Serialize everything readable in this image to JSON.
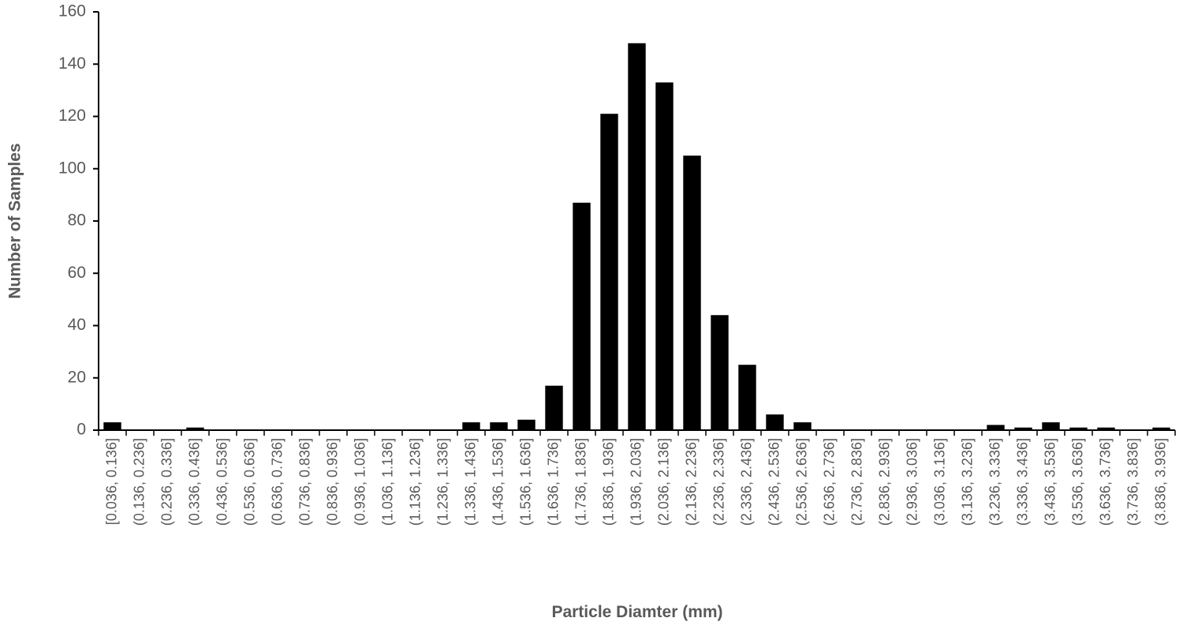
{
  "chart_data": {
    "type": "bar",
    "x_label": "Particle Diamter (mm)",
    "y_label": "Number of Samples",
    "categories": [
      "[0.036, 0.136]",
      "(0.136, 0.236]",
      "(0.236, 0.336]",
      "(0.336, 0.436]",
      "(0.436, 0.536]",
      "(0.536, 0.636]",
      "(0.636, 0.736]",
      "(0.736, 0.836]",
      "(0.836, 0.936]",
      "(0.936, 1.036]",
      "(1.036, 1.136]",
      "(1.136, 1.236]",
      "(1.236, 1.336]",
      "(1.336, 1.436]",
      "(1.436, 1.536]",
      "(1.536, 1.636]",
      "(1.636, 1.736]",
      "(1.736, 1.836]",
      "(1.836, 1.936]",
      "(1.936, 2.036]",
      "(2.036, 2.136]",
      "(2.136, 2.236]",
      "(2.236, 2.336]",
      "(2.336, 2.436]",
      "(2.436, 2.536]",
      "(2.536, 2.636]",
      "(2.636, 2.736]",
      "(2.736, 2.836]",
      "(2.836, 2.936]",
      "(2.936, 3.036]",
      "(3.036, 3.136]",
      "(3.136, 3.236]",
      "(3.236, 3.336]",
      "(3.336, 3.436]",
      "(3.436, 3.536]",
      "(3.536, 3.636]",
      "(3.636, 3.736]",
      "(3.736, 3.836]",
      "(3.836, 3.936]"
    ],
    "values": [
      3,
      0,
      0,
      1,
      0,
      0,
      0,
      0,
      0,
      0,
      0,
      0,
      0,
      3,
      3,
      4,
      17,
      87,
      121,
      148,
      133,
      105,
      44,
      25,
      6,
      3,
      0,
      0,
      0,
      0,
      0,
      0,
      2,
      1,
      3,
      1,
      1,
      0,
      1
    ],
    "color": "#000000",
    "ylim": [
      0,
      160
    ],
    "yticks": [
      0,
      20,
      40,
      60,
      80,
      100,
      120,
      140,
      160
    ],
    "grid": false
  }
}
